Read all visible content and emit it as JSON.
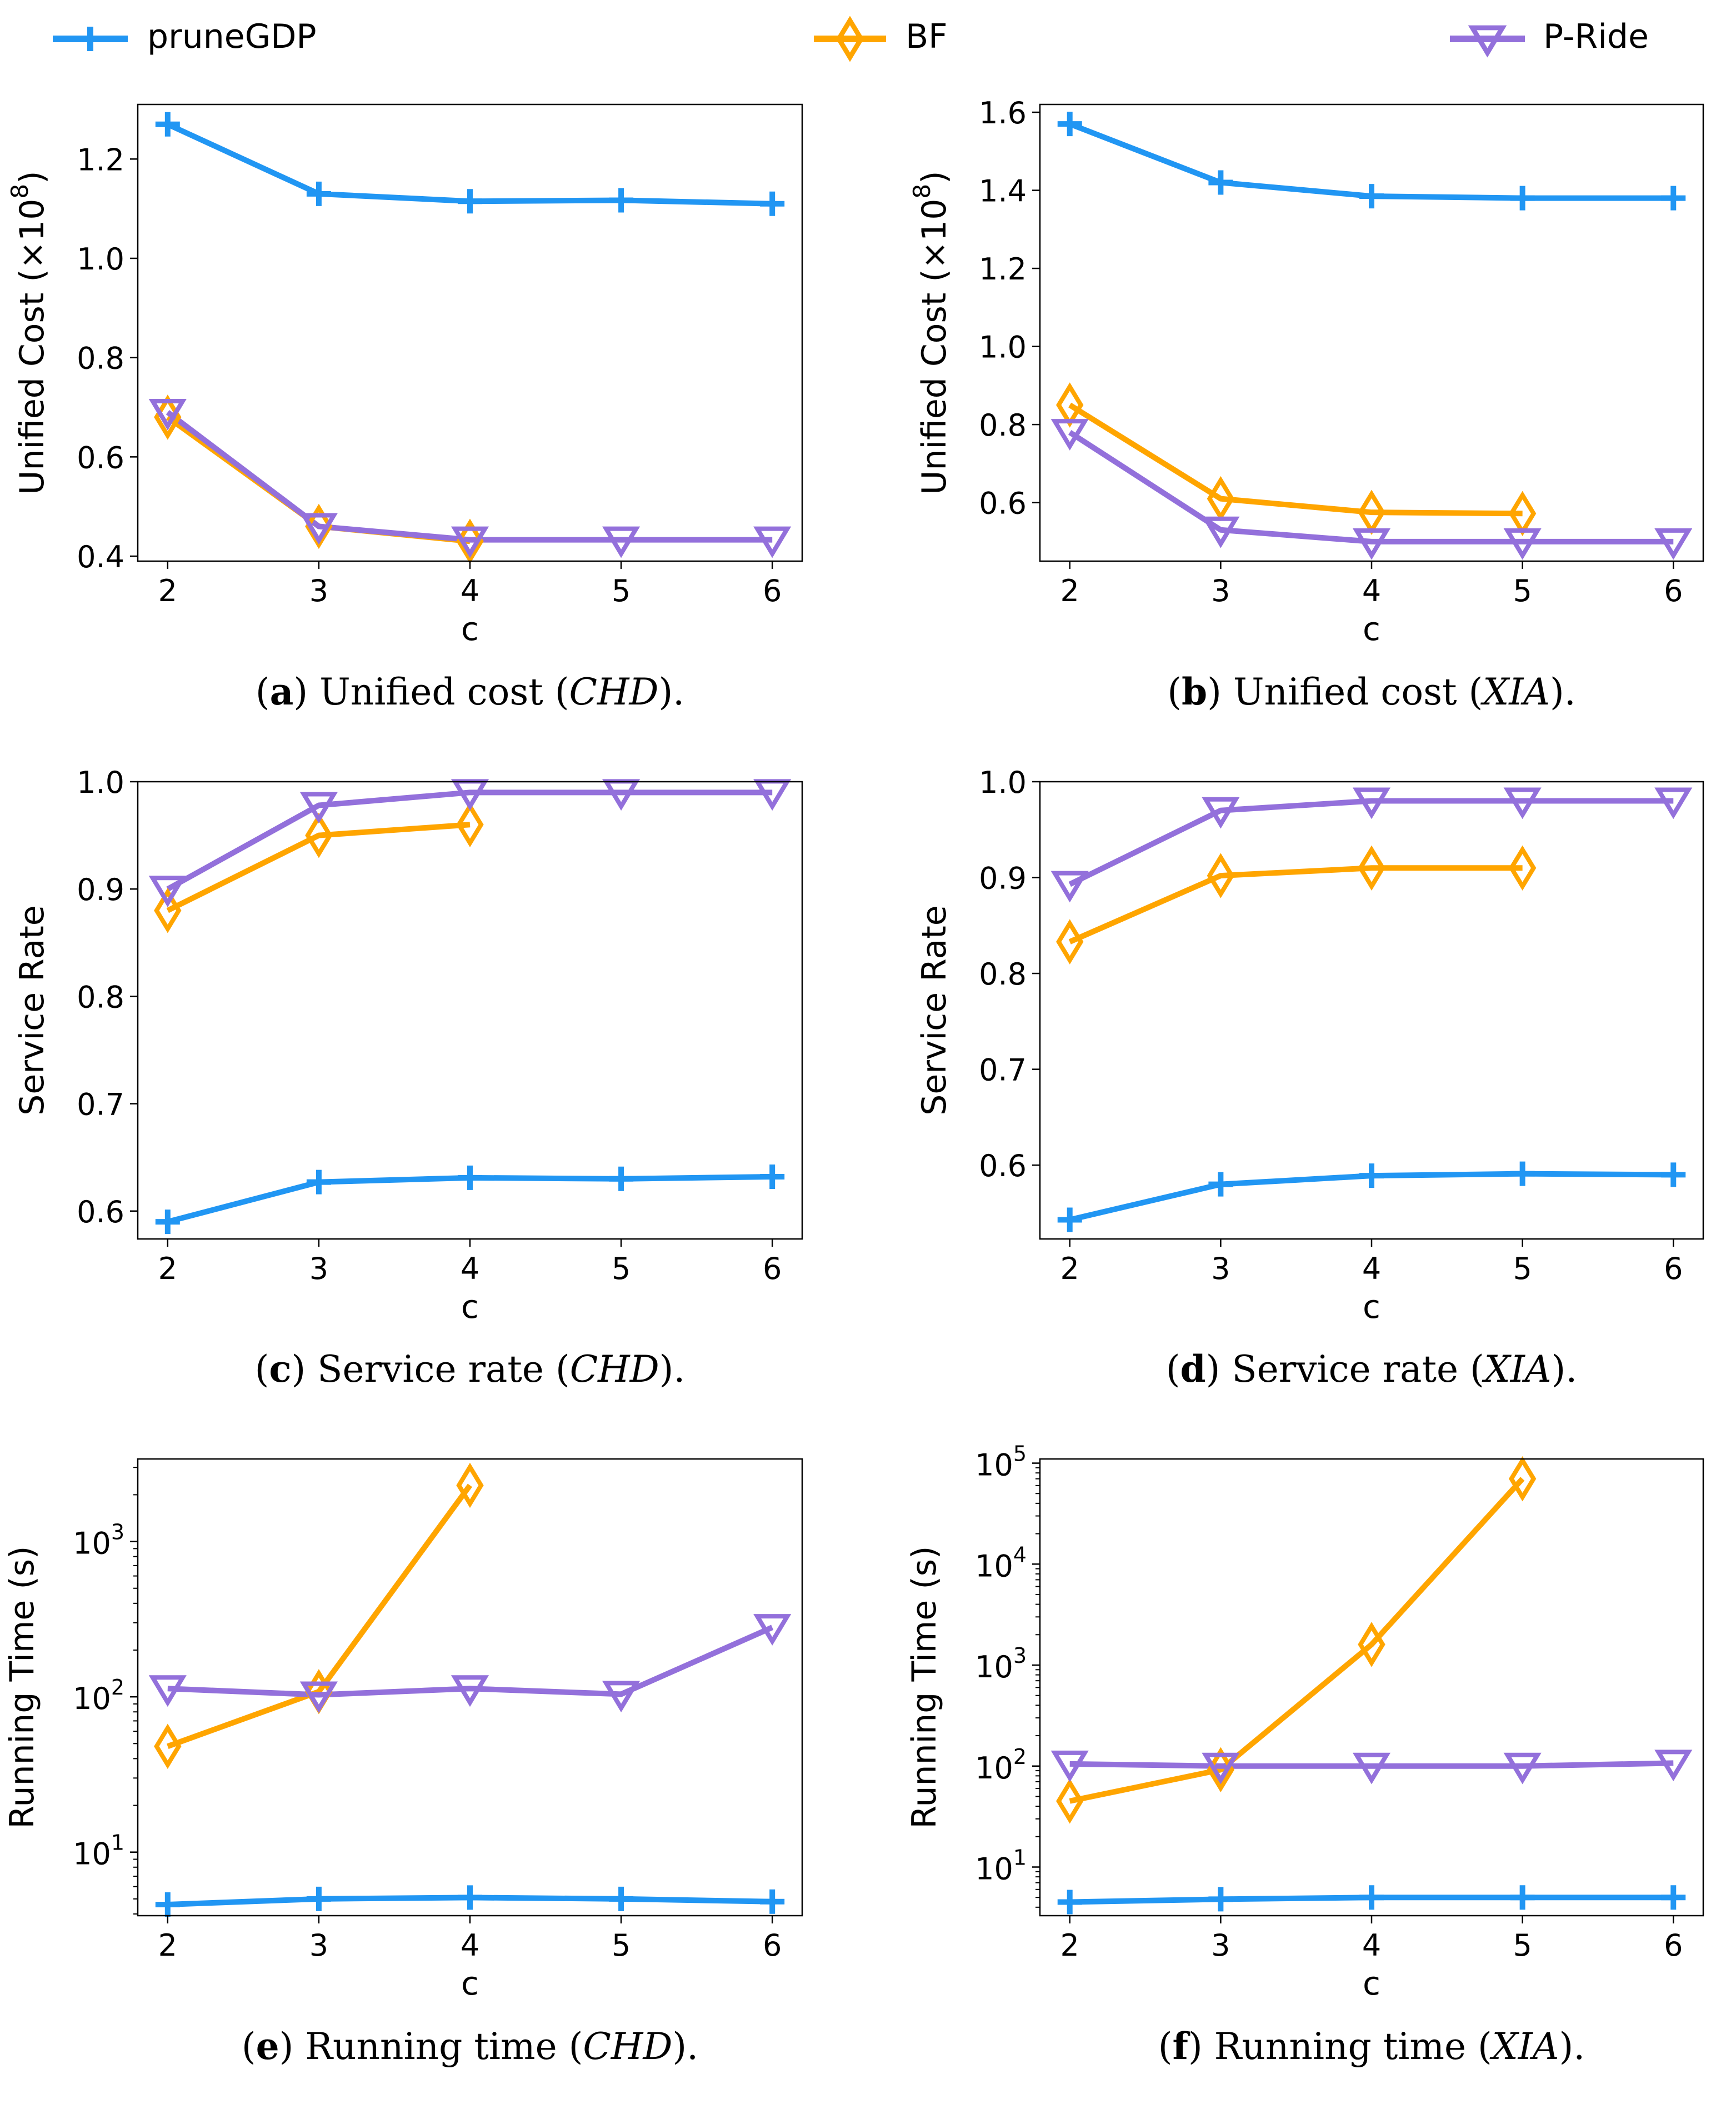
{
  "legend": [
    {
      "key": "pruneGDP",
      "label": "pruneGDP",
      "color": "#2196F3",
      "marker": "plus-icon"
    },
    {
      "key": "BF",
      "label": "BF",
      "color": "#FFA500",
      "marker": "diamond-icon"
    },
    {
      "key": "PRide",
      "label": "P-Ride",
      "color": "#9370DB",
      "marker": "down-triangle-icon"
    }
  ],
  "chart_data": [
    {
      "id": "a",
      "type": "line",
      "scale": "linear",
      "categories": [
        2,
        3,
        4,
        5,
        6
      ],
      "xlabel": "c",
      "ylabel": "Unified Cost (×10⁸)",
      "ylabel_main": "Unified Cost (×10",
      "ylabel_exp": "8",
      "ylabel_tail": ")",
      "ylim": [
        0.39,
        1.31
      ],
      "yticks": [
        0.4,
        0.6,
        0.8,
        1.0,
        1.2
      ],
      "ytick_labels": [
        "0.4",
        "0.6",
        "0.8",
        "1.0",
        "1.2"
      ],
      "caption_letter": "(a)",
      "caption_text": " Unified cost (",
      "caption_italic": "CHD",
      "caption_end": ").",
      "series": [
        {
          "name": "pruneGDP",
          "values": [
            1.27,
            1.13,
            1.115,
            1.117,
            1.11
          ]
        },
        {
          "name": "BF",
          "values": [
            0.68,
            0.46,
            0.43,
            null,
            null
          ]
        },
        {
          "name": "P-Ride",
          "values": [
            0.69,
            0.46,
            0.433,
            0.433,
            0.433
          ]
        }
      ]
    },
    {
      "id": "b",
      "type": "line",
      "scale": "linear",
      "categories": [
        2,
        3,
        4,
        5,
        6
      ],
      "xlabel": "c",
      "ylabel": "Unified Cost (×10⁸)",
      "ylabel_main": "Unified Cost (×10",
      "ylabel_exp": "8",
      "ylabel_tail": ")",
      "ylim": [
        0.45,
        1.62
      ],
      "yticks": [
        0.6,
        0.8,
        1.0,
        1.2,
        1.4,
        1.6
      ],
      "ytick_labels": [
        "0.6",
        "0.8",
        "1.0",
        "1.2",
        "1.4",
        "1.6"
      ],
      "caption_letter": "(b)",
      "caption_text": " Unified cost (",
      "caption_italic": "XIA",
      "caption_end": ").",
      "series": [
        {
          "name": "pruneGDP",
          "values": [
            1.57,
            1.42,
            1.385,
            1.38,
            1.38
          ]
        },
        {
          "name": "BF",
          "values": [
            0.85,
            0.61,
            0.575,
            0.572,
            null
          ]
        },
        {
          "name": "P-Ride",
          "values": [
            0.78,
            0.53,
            0.5,
            0.5,
            0.5
          ]
        }
      ]
    },
    {
      "id": "c",
      "type": "line",
      "scale": "linear",
      "categories": [
        2,
        3,
        4,
        5,
        6
      ],
      "xlabel": "c",
      "ylabel": "Service Rate",
      "ylabel_main": "Service Rate",
      "ylabel_exp": "",
      "ylabel_tail": "",
      "ylim": [
        0.574,
        1.0
      ],
      "yticks": [
        0.6,
        0.7,
        0.8,
        0.9,
        1.0
      ],
      "ytick_labels": [
        "0.6",
        "0.7",
        "0.8",
        "0.9",
        "1.0"
      ],
      "caption_letter": "(c)",
      "caption_text": " Service rate (",
      "caption_italic": "CHD",
      "caption_end": ").",
      "series": [
        {
          "name": "pruneGDP",
          "values": [
            0.59,
            0.627,
            0.631,
            0.63,
            0.632
          ]
        },
        {
          "name": "BF",
          "values": [
            0.88,
            0.95,
            0.96,
            null,
            null
          ]
        },
        {
          "name": "P-Ride",
          "values": [
            0.9,
            0.978,
            0.99,
            0.99,
            0.99
          ]
        }
      ]
    },
    {
      "id": "d",
      "type": "line",
      "scale": "linear",
      "categories": [
        2,
        3,
        4,
        5,
        6
      ],
      "xlabel": "c",
      "ylabel": "Service Rate",
      "ylabel_main": "Service Rate",
      "ylabel_exp": "",
      "ylabel_tail": "",
      "ylim": [
        0.523,
        1.0
      ],
      "yticks": [
        0.6,
        0.7,
        0.8,
        0.9,
        1.0
      ],
      "ytick_labels": [
        "0.6",
        "0.7",
        "0.8",
        "0.9",
        "1.0"
      ],
      "caption_letter": "(d)",
      "caption_text": " Service rate (",
      "caption_italic": "XIA",
      "caption_end": ").",
      "series": [
        {
          "name": "pruneGDP",
          "values": [
            0.543,
            0.58,
            0.589,
            0.591,
            0.59
          ]
        },
        {
          "name": "BF",
          "values": [
            0.833,
            0.902,
            0.91,
            0.91,
            null
          ]
        },
        {
          "name": "P-Ride",
          "values": [
            0.893,
            0.97,
            0.98,
            0.98,
            0.98
          ]
        }
      ]
    },
    {
      "id": "e",
      "type": "line",
      "scale": "log",
      "categories": [
        2,
        3,
        4,
        5,
        6
      ],
      "xlabel": "c",
      "ylabel": "Running Time (s)",
      "ylabel_main": "Running Time (s)",
      "ylabel_exp": "",
      "ylabel_tail": "",
      "ylim": [
        3.9,
        3400
      ],
      "yticks": [
        10,
        100,
        1000
      ],
      "ytick_base": [
        "10",
        "10",
        "10"
      ],
      "ytick_exp": [
        "1",
        "2",
        "3"
      ],
      "caption_letter": "(e)",
      "caption_text": " Running time (",
      "caption_italic": "CHD",
      "caption_end": ").",
      "series": [
        {
          "name": "pruneGDP",
          "values": [
            4.6,
            5.0,
            5.1,
            5.0,
            4.8
          ]
        },
        {
          "name": "BF",
          "values": [
            48,
            108,
            2300,
            null,
            null
          ]
        },
        {
          "name": "P-Ride",
          "values": [
            113,
            103,
            113,
            104,
            280
          ]
        }
      ]
    },
    {
      "id": "f",
      "type": "line",
      "scale": "log",
      "categories": [
        2,
        3,
        4,
        5,
        6
      ],
      "xlabel": "c",
      "ylabel": "Running Time (s)",
      "ylabel_main": "Running Time (s)",
      "ylabel_exp": "",
      "ylabel_tail": "",
      "ylim": [
        3.3,
        110000
      ],
      "yticks": [
        10,
        100,
        1000,
        10000,
        100000
      ],
      "ytick_base": [
        "10",
        "10",
        "10",
        "10",
        "10"
      ],
      "ytick_exp": [
        "1",
        "2",
        "3",
        "4",
        "5"
      ],
      "caption_letter": "(f)",
      "caption_text": " Running time (",
      "caption_italic": "XIA",
      "caption_end": ").",
      "series": [
        {
          "name": "pruneGDP",
          "values": [
            4.5,
            4.8,
            5.0,
            5.0,
            5.0
          ]
        },
        {
          "name": "BF",
          "values": [
            45,
            92,
            1600,
            70000,
            null
          ]
        },
        {
          "name": "P-Ride",
          "values": [
            105,
            100,
            100,
            100,
            107
          ]
        }
      ]
    }
  ]
}
